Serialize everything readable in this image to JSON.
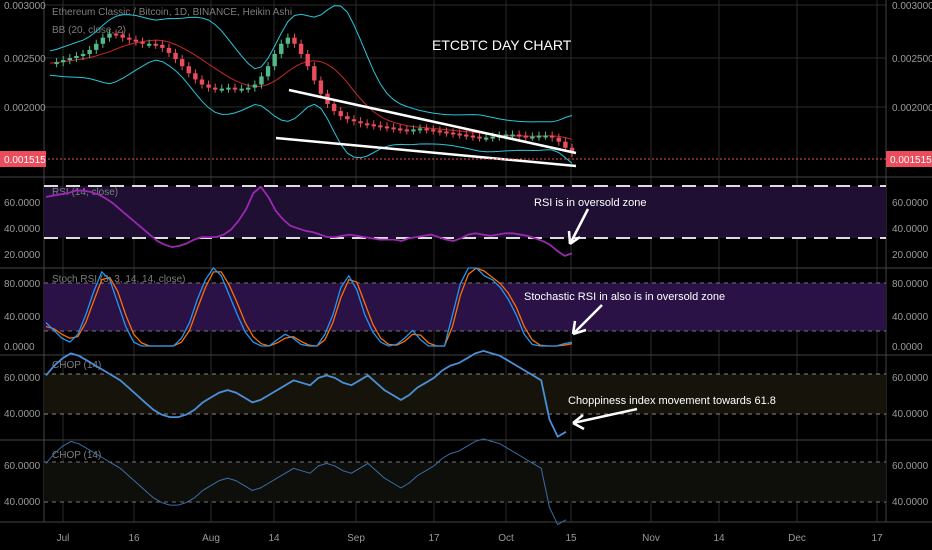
{
  "chart_data": {
    "type": "candlestick",
    "header": "Ethereum Classic / Bitcoin, 1D, BINANCE, Heikin Ashi",
    "title": "ETCBTC DAY CHART",
    "x_labels": [
      "Jul",
      "16",
      "Aug",
      "14",
      "Sep",
      "17",
      "Oct",
      "15",
      "Nov",
      "14",
      "Dec",
      "17"
    ],
    "price_panel": {
      "indicator_label": "BB (20, close, 2)",
      "y_ticks": [
        "0.003000",
        "0.002500",
        "0.002000"
      ],
      "ylim": [
        0.0014,
        0.0031
      ],
      "last_price": "0.001515",
      "close_series": [
        0.00243,
        0.00244,
        0.00246,
        0.00248,
        0.0025,
        0.00252,
        0.00256,
        0.00262,
        0.00268,
        0.00272,
        0.00271,
        0.00268,
        0.00266,
        0.00264,
        0.00262,
        0.00262,
        0.00261,
        0.00258,
        0.00253,
        0.00247,
        0.0024,
        0.00233,
        0.00227,
        0.00222,
        0.00219,
        0.00218,
        0.00218,
        0.00219,
        0.00218,
        0.00218,
        0.00219,
        0.00222,
        0.0023,
        0.0024,
        0.00252,
        0.00262,
        0.00268,
        0.00262,
        0.00252,
        0.0024,
        0.00226,
        0.00213,
        0.00203,
        0.00196,
        0.00191,
        0.00188,
        0.00186,
        0.00184,
        0.00183,
        0.00182,
        0.00181,
        0.0018,
        0.00179,
        0.00178,
        0.00177,
        0.00178,
        0.00179,
        0.00178,
        0.00177,
        0.00176,
        0.00175,
        0.00174,
        0.00173,
        0.00172,
        0.00171,
        0.0017,
        0.0017,
        0.00171,
        0.00172,
        0.00173,
        0.00173,
        0.00172,
        0.00171,
        0.00171,
        0.00172,
        0.00172,
        0.0017,
        0.00166,
        0.0016,
        0.00155
      ]
    },
    "rsi_panel": {
      "label": "RSI (14, close)",
      "y_ticks": [
        "60.0000",
        "40.0000",
        "20.0000"
      ],
      "ylim": [
        10,
        80
      ],
      "band": [
        30,
        70
      ],
      "values": [
        65,
        66,
        67,
        68,
        70,
        70,
        69,
        67,
        64,
        60,
        55,
        50,
        45,
        40,
        35,
        30,
        27,
        25,
        26,
        28,
        31,
        33,
        33,
        33,
        35,
        39,
        46,
        55,
        68,
        73,
        65,
        54,
        47,
        42,
        40,
        38,
        37,
        35,
        33,
        33,
        34,
        35,
        34,
        33,
        32,
        31,
        31,
        31,
        30,
        32,
        33,
        34,
        35,
        33,
        31,
        30,
        32,
        35,
        36,
        35,
        34,
        35,
        36,
        36,
        35,
        34,
        32,
        30,
        27,
        22,
        18,
        20
      ]
    },
    "stoch_panel": {
      "label": "Stoch RSI (3, 3, 14, 14, close)",
      "y_ticks": [
        "80.0000",
        "40.0000",
        "0.0000"
      ],
      "ylim": [
        0,
        100
      ],
      "band": [
        20,
        80
      ],
      "k": [
        30,
        20,
        10,
        5,
        15,
        40,
        70,
        95,
        85,
        55,
        25,
        5,
        0,
        0,
        0,
        0,
        0,
        10,
        30,
        60,
        85,
        100,
        90,
        65,
        40,
        18,
        5,
        0,
        0,
        8,
        15,
        10,
        2,
        0,
        0,
        15,
        40,
        75,
        90,
        72,
        40,
        18,
        5,
        0,
        2,
        10,
        20,
        8,
        0,
        0,
        0,
        40,
        80,
        100,
        100,
        90,
        85,
        75,
        60,
        40,
        15,
        2,
        0,
        0,
        0,
        3,
        5
      ],
      "d": [
        25,
        22,
        15,
        10,
        12,
        30,
        58,
        85,
        88,
        70,
        40,
        15,
        4,
        0,
        0,
        0,
        0,
        5,
        20,
        48,
        75,
        95,
        95,
        78,
        55,
        30,
        12,
        3,
        0,
        4,
        10,
        12,
        6,
        1,
        0,
        8,
        30,
        62,
        85,
        82,
        55,
        28,
        10,
        2,
        1,
        6,
        15,
        14,
        4,
        0,
        0,
        25,
        65,
        92,
        100,
        96,
        88,
        80,
        68,
        50,
        25,
        8,
        1,
        0,
        0,
        1,
        3
      ]
    },
    "chop_panel": {
      "label": "CHOP (14)",
      "y_ticks": [
        "60.0000",
        "40.0000"
      ],
      "ylim": [
        30,
        70
      ],
      "band": [
        38.2,
        61.8
      ],
      "values": [
        58,
        62,
        65,
        67,
        66,
        64,
        62,
        60,
        58,
        56,
        53,
        50,
        47,
        44,
        42,
        41,
        41,
        42,
        44,
        47,
        49,
        51,
        52,
        51,
        49,
        47,
        48,
        50,
        52,
        54,
        56,
        55,
        54,
        57,
        58,
        57,
        55,
        54,
        56,
        58,
        55,
        52,
        50,
        48,
        50,
        53,
        55,
        57,
        60,
        62,
        63,
        65,
        67,
        68,
        67,
        66,
        64,
        62,
        60,
        58,
        56,
        40,
        33,
        35
      ]
    },
    "chop2_panel": {
      "label": "CHOP (14)",
      "y_ticks": [
        "60.0000",
        "40.0000"
      ],
      "ylim": [
        30,
        70
      ],
      "band": [
        38.2,
        61.8
      ],
      "values": [
        58,
        62,
        65,
        67,
        66,
        64,
        62,
        60,
        58,
        56,
        53,
        50,
        47,
        44,
        42,
        41,
        41,
        42,
        44,
        47,
        49,
        51,
        52,
        51,
        49,
        47,
        48,
        50,
        52,
        54,
        56,
        55,
        54,
        57,
        58,
        57,
        55,
        54,
        56,
        58,
        55,
        52,
        50,
        48,
        50,
        53,
        55,
        57,
        60,
        62,
        63,
        65,
        67,
        68,
        67,
        66,
        64,
        62,
        60,
        58,
        56,
        40,
        33,
        35
      ]
    },
    "annotations": {
      "rsi": "RSI is in oversold zone",
      "stoch": "Stochastic RSI  in also is in oversold zone",
      "chop": "Choppiness index movement towards 61.8"
    },
    "colors": {
      "up": "#53b987",
      "down": "#eb4d5c",
      "rsi": "#9c27b0",
      "stoch_k": "#2196f3",
      "stoch_d": "#ff6d00",
      "chop": "#4a90d9",
      "bb": "#26c6da",
      "basis": "#c62828"
    }
  }
}
